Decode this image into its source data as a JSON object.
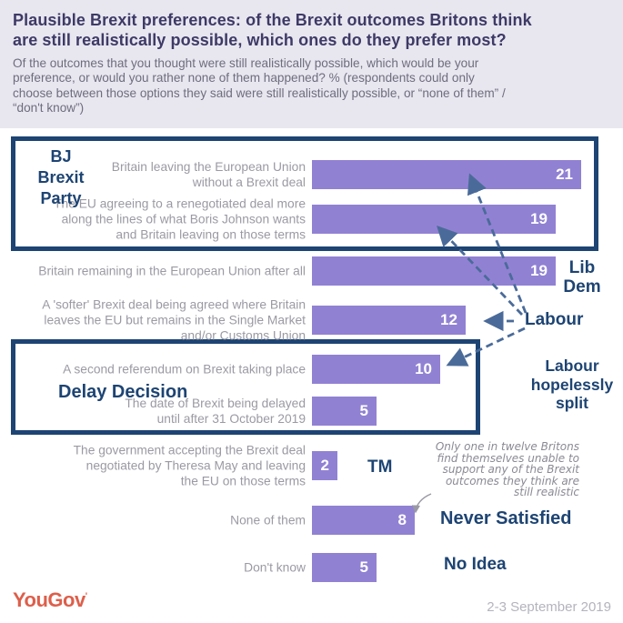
{
  "header": {
    "title": "Plausible Brexit preferences: of the Brexit outcomes Britons think\nare still realistically possible, which ones do they prefer most?",
    "subtitle": "Of the outcomes that you thought were still realistically possible, which would be your\npreference, or would you rather none of them happened? % (respondents could only\nchoose between those options they said were still realistically possible, or “none of them” /\n“don't know”)"
  },
  "chart_data": {
    "type": "bar",
    "orientation": "horizontal",
    "unit": "%",
    "title": "Plausible Brexit preferences",
    "categories": [
      "Britain leaving the European Union\nwithout a Brexit deal",
      "The EU agreeing to a renegotiated deal more\nalong the lines of what Boris Johnson wants\nand Britain leaving on those terms",
      "Britain remaining in the European Union after all",
      "A 'softer' Brexit deal being agreed where Britain\nleaves the EU but remains in the Single Market\nand/or Customs Union",
      "A second referendum on Brexit taking place",
      "The date of Brexit being delayed\nuntil after 31 October 2019",
      "The government accepting the Brexit deal\nnegotiated by Theresa May and leaving\nthe EU on those terms",
      "None of them",
      "Don't know"
    ],
    "values": [
      21,
      19,
      19,
      12,
      10,
      5,
      2,
      8,
      5
    ],
    "xlim": [
      0,
      22
    ],
    "grid": false,
    "bar_color": "#9181d3",
    "value_label_color": "#ffffff"
  },
  "annotations": {
    "bj_brexit_party": "BJ\nBrexit\nParty",
    "lib_dem": "Lib\nDem",
    "labour": "Labour",
    "labour_split": "Labour\nhopelessly\nsplit",
    "delay_decision": "Delay Decision",
    "tm": "TM",
    "never_satisfied": "Never Satisfied",
    "no_idea": "No Idea",
    "note": "Only one in twelve Britons\nfind themselves unable to\nsupport any of the Brexit\noutcomes they think are\nstill realistic",
    "accent_color": "#1d4473",
    "arrow_color": "#4a6b99"
  },
  "footer": {
    "logo": "YouGov",
    "logo_mark": "'",
    "date": "2-3 September 2019"
  }
}
